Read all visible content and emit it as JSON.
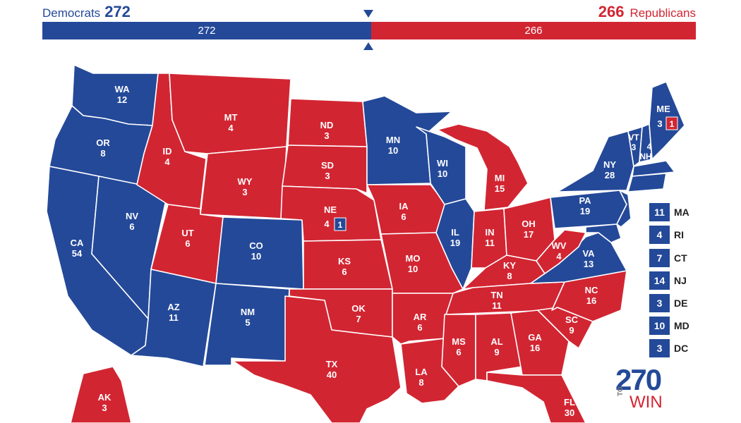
{
  "header": {
    "dem_name": "Democrats",
    "dem_total": "272",
    "rep_name": "Republicans",
    "rep_total": "266",
    "bar_dem": "272",
    "bar_rep": "266"
  },
  "colors": {
    "dem": "#244999",
    "rep": "#d22532"
  },
  "states": [
    {
      "abbr": "WA",
      "ev": "12",
      "party": "D"
    },
    {
      "abbr": "OR",
      "ev": "8",
      "party": "D"
    },
    {
      "abbr": "CA",
      "ev": "54",
      "party": "D"
    },
    {
      "abbr": "NV",
      "ev": "6",
      "party": "D"
    },
    {
      "abbr": "ID",
      "ev": "4",
      "party": "R"
    },
    {
      "abbr": "MT",
      "ev": "4",
      "party": "R"
    },
    {
      "abbr": "WY",
      "ev": "3",
      "party": "R"
    },
    {
      "abbr": "UT",
      "ev": "6",
      "party": "R"
    },
    {
      "abbr": "CO",
      "ev": "10",
      "party": "D"
    },
    {
      "abbr": "AZ",
      "ev": "11",
      "party": "D"
    },
    {
      "abbr": "NM",
      "ev": "5",
      "party": "D"
    },
    {
      "abbr": "ND",
      "ev": "3",
      "party": "R"
    },
    {
      "abbr": "SD",
      "ev": "3",
      "party": "R"
    },
    {
      "abbr": "NE",
      "ev": "4",
      "party": "R"
    },
    {
      "abbr": "KS",
      "ev": "6",
      "party": "R"
    },
    {
      "abbr": "OK",
      "ev": "7",
      "party": "R"
    },
    {
      "abbr": "TX",
      "ev": "40",
      "party": "R"
    },
    {
      "abbr": "MN",
      "ev": "10",
      "party": "D"
    },
    {
      "abbr": "IA",
      "ev": "6",
      "party": "R"
    },
    {
      "abbr": "MO",
      "ev": "10",
      "party": "R"
    },
    {
      "abbr": "AR",
      "ev": "6",
      "party": "R"
    },
    {
      "abbr": "LA",
      "ev": "8",
      "party": "R"
    },
    {
      "abbr": "WI",
      "ev": "10",
      "party": "D"
    },
    {
      "abbr": "IL",
      "ev": "19",
      "party": "D"
    },
    {
      "abbr": "MI",
      "ev": "15",
      "party": "R"
    },
    {
      "abbr": "IN",
      "ev": "11",
      "party": "R"
    },
    {
      "abbr": "OH",
      "ev": "17",
      "party": "R"
    },
    {
      "abbr": "KY",
      "ev": "8",
      "party": "R"
    },
    {
      "abbr": "TN",
      "ev": "11",
      "party": "R"
    },
    {
      "abbr": "MS",
      "ev": "6",
      "party": "R"
    },
    {
      "abbr": "AL",
      "ev": "9",
      "party": "R"
    },
    {
      "abbr": "GA",
      "ev": "16",
      "party": "R"
    },
    {
      "abbr": "FL",
      "ev": "30",
      "party": "R"
    },
    {
      "abbr": "SC",
      "ev": "9",
      "party": "R"
    },
    {
      "abbr": "NC",
      "ev": "16",
      "party": "R"
    },
    {
      "abbr": "VA",
      "ev": "13",
      "party": "D"
    },
    {
      "abbr": "WV",
      "ev": "4",
      "party": "R"
    },
    {
      "abbr": "PA",
      "ev": "19",
      "party": "D"
    },
    {
      "abbr": "NY",
      "ev": "28",
      "party": "D"
    },
    {
      "abbr": "VT",
      "ev": "3",
      "party": "D"
    },
    {
      "abbr": "NH",
      "ev": "4",
      "party": "D"
    },
    {
      "abbr": "ME",
      "ev": "3",
      "party": "D"
    },
    {
      "abbr": "AK",
      "ev": "3",
      "party": "R"
    }
  ],
  "district_boxes": {
    "me_cd2": "1",
    "ne_cd2": "1"
  },
  "small_states": [
    {
      "abbr": "MA",
      "ev": "11"
    },
    {
      "abbr": "RI",
      "ev": "4"
    },
    {
      "abbr": "CT",
      "ev": "7"
    },
    {
      "abbr": "NJ",
      "ev": "14"
    },
    {
      "abbr": "DE",
      "ev": "3"
    },
    {
      "abbr": "MD",
      "ev": "10"
    },
    {
      "abbr": "DC",
      "ev": "3"
    }
  ],
  "logo": {
    "number": "270",
    "to": "TO",
    "win": "WIN"
  }
}
